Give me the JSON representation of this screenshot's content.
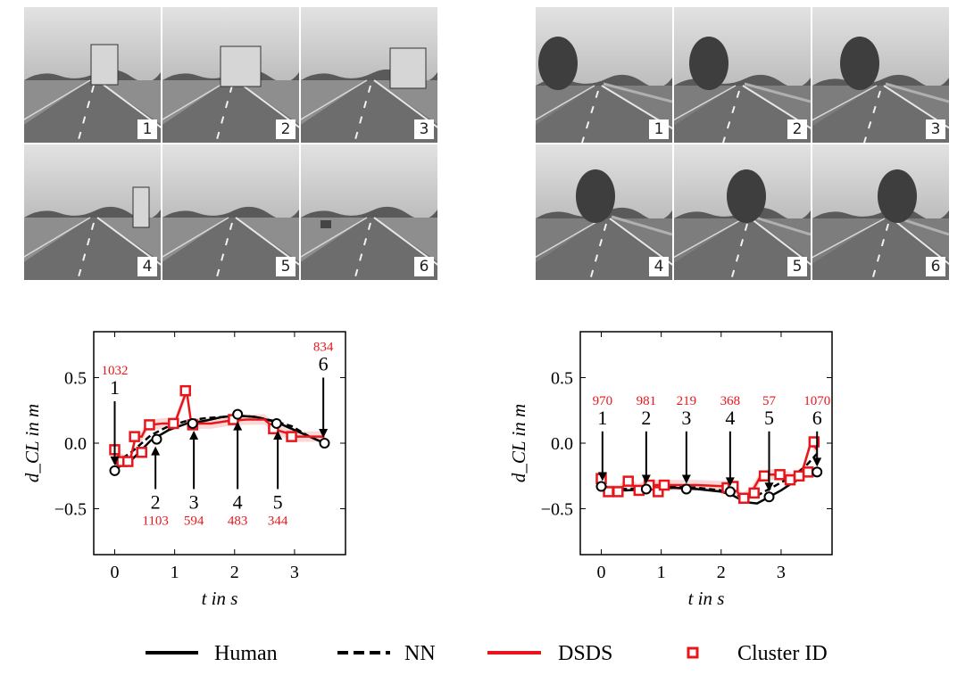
{
  "photo_panels": [
    {
      "scene": "highway-truck-overtake",
      "frame_labels": [
        "1",
        "2",
        "3",
        "4",
        "5",
        "6"
      ]
    },
    {
      "scene": "rural-curve-oncoming-car",
      "frame_labels": [
        "1",
        "2",
        "3",
        "4",
        "5",
        "6"
      ]
    }
  ],
  "legend": {
    "human": "Human",
    "nn": "NN",
    "dsds": "DSDS",
    "cluster": "Cluster ID"
  },
  "colors": {
    "human": "#000000",
    "nn": "#000000",
    "dsds": "#e8161b",
    "cluster_id": "#e8161b"
  },
  "chart_data": [
    {
      "type": "line",
      "xlabel": "t in s",
      "ylabel": "d_CL in m",
      "xlim": [
        -0.35,
        3.85
      ],
      "ylim": [
        -0.85,
        0.85
      ],
      "xticks": [
        "0",
        "1",
        "2",
        "3"
      ],
      "yticks": [
        "0.5",
        "0.0",
        "−0.5"
      ],
      "series": [
        {
          "name": "Human",
          "style": "solid-black",
          "x": [
            0,
            0.3,
            0.6,
            0.9,
            1.2,
            1.5,
            1.8,
            2.05,
            2.35,
            2.7,
            3.0,
            3.25,
            3.5
          ],
          "y": [
            -0.2,
            -0.12,
            0.02,
            0.1,
            0.15,
            0.17,
            0.2,
            0.21,
            0.2,
            0.16,
            0.1,
            0.05,
            0.0
          ]
        },
        {
          "name": "NN",
          "style": "dashed-black",
          "x": [
            0,
            0.3,
            0.6,
            0.9,
            1.2,
            1.5,
            1.8,
            2.05,
            2.35,
            2.65,
            2.95,
            3.25,
            3.5
          ],
          "y": [
            -0.16,
            -0.06,
            0.06,
            0.13,
            0.17,
            0.19,
            0.2,
            0.21,
            0.2,
            0.17,
            0.13,
            0.05,
            0.0
          ]
        },
        {
          "name": "DSDS",
          "style": "solid-red",
          "x": [
            0,
            0.1,
            0.25,
            0.35,
            0.45,
            0.55,
            0.6,
            0.8,
            1.0,
            1.2,
            1.28,
            1.35,
            1.6,
            1.9,
            2.2,
            2.5,
            2.7,
            2.85,
            3.0,
            3.5
          ],
          "y": [
            -0.05,
            -0.12,
            -0.14,
            0.05,
            0.05,
            0.14,
            0.14,
            0.15,
            0.15,
            0.4,
            0.14,
            0.15,
            0.15,
            0.17,
            0.18,
            0.18,
            0.1,
            0.08,
            0.05,
            0.05
          ]
        },
        {
          "name": "Cluster ID",
          "style": "red-square-markers",
          "x": [
            0,
            0.12,
            0.22,
            0.33,
            0.45,
            0.58,
            0.98,
            1.18,
            1.3,
            1.98,
            2.65,
            2.95
          ],
          "y": [
            -0.05,
            -0.14,
            -0.14,
            0.05,
            -0.07,
            0.14,
            0.15,
            0.4,
            0.14,
            0.18,
            0.11,
            0.05
          ]
        }
      ],
      "circles": {
        "x": [
          0,
          0.7,
          1.3,
          2.05,
          2.7,
          3.5
        ],
        "y": [
          -0.21,
          0.03,
          0.15,
          0.22,
          0.15,
          0.0
        ]
      },
      "annotations": [
        {
          "frame": "1",
          "cluster": "1032",
          "x": 0.0,
          "dir": "down"
        },
        {
          "frame": "2",
          "cluster": "1103",
          "x": 0.68,
          "dir": "up"
        },
        {
          "frame": "3",
          "cluster": "594",
          "x": 1.32,
          "dir": "up"
        },
        {
          "frame": "4",
          "cluster": "483",
          "x": 2.05,
          "dir": "up"
        },
        {
          "frame": "5",
          "cluster": "344",
          "x": 2.72,
          "dir": "up"
        },
        {
          "frame": "6",
          "cluster": "834",
          "x": 3.48,
          "dir": "down"
        }
      ]
    },
    {
      "type": "line",
      "xlabel": "t in s",
      "ylabel": "d_CL in m",
      "xlim": [
        -0.35,
        3.85
      ],
      "ylim": [
        -0.85,
        0.85
      ],
      "xticks": [
        "0",
        "1",
        "2",
        "3"
      ],
      "yticks": [
        "0.5",
        "0.0",
        "−0.5"
      ],
      "series": [
        {
          "name": "Human",
          "style": "solid-black",
          "x": [
            0,
            0.4,
            0.8,
            1.2,
            1.6,
            2.0,
            2.2,
            2.4,
            2.6,
            2.8,
            3.0,
            3.2,
            3.4,
            3.6
          ],
          "y": [
            -0.34,
            -0.36,
            -0.35,
            -0.34,
            -0.35,
            -0.37,
            -0.4,
            -0.45,
            -0.46,
            -0.41,
            -0.36,
            -0.3,
            -0.25,
            -0.22
          ]
        },
        {
          "name": "NN",
          "style": "dashed-black",
          "x": [
            0,
            0.4,
            0.8,
            1.2,
            1.6,
            2.0,
            2.2,
            2.4,
            2.6,
            2.8,
            3.0,
            3.2,
            3.4,
            3.6
          ],
          "y": [
            -0.33,
            -0.35,
            -0.34,
            -0.33,
            -0.34,
            -0.36,
            -0.38,
            -0.42,
            -0.4,
            -0.35,
            -0.3,
            -0.25,
            -0.18,
            -0.08
          ]
        },
        {
          "name": "DSDS",
          "style": "solid-red",
          "x": [
            0,
            0.1,
            0.3,
            0.45,
            0.6,
            0.8,
            0.9,
            1.0,
            1.2,
            1.6,
            2.1,
            2.2,
            2.35,
            2.5,
            2.65,
            2.8,
            3.0,
            3.2,
            3.35,
            3.5,
            3.6
          ],
          "y": [
            -0.27,
            -0.36,
            -0.36,
            -0.29,
            -0.35,
            -0.32,
            -0.32,
            -0.32,
            -0.32,
            -0.32,
            -0.33,
            -0.33,
            -0.42,
            -0.38,
            -0.26,
            -0.24,
            -0.24,
            -0.27,
            -0.22,
            0.01,
            -0.05
          ]
        },
        {
          "name": "Cluster ID",
          "style": "red-square-markers",
          "x": [
            0,
            0.12,
            0.28,
            0.45,
            0.63,
            0.8,
            0.95,
            1.05,
            2.1,
            2.2,
            2.38,
            2.55,
            2.72,
            2.98,
            3.15,
            3.3,
            3.45,
            3.55
          ],
          "y": [
            -0.27,
            -0.37,
            -0.37,
            -0.29,
            -0.36,
            -0.32,
            -0.37,
            -0.32,
            -0.34,
            -0.33,
            -0.42,
            -0.38,
            -0.25,
            -0.24,
            -0.28,
            -0.25,
            -0.22,
            0.01
          ]
        }
      ],
      "circles": {
        "x": [
          0,
          0.75,
          1.42,
          2.15,
          2.8,
          3.6
        ],
        "y": [
          -0.33,
          -0.35,
          -0.35,
          -0.37,
          -0.41,
          -0.22
        ]
      },
      "annotations": [
        {
          "frame": "1",
          "cluster": "970",
          "x": 0.02,
          "dir": "down"
        },
        {
          "frame": "2",
          "cluster": "981",
          "x": 0.75,
          "dir": "down"
        },
        {
          "frame": "3",
          "cluster": "219",
          "x": 1.42,
          "dir": "down"
        },
        {
          "frame": "4",
          "cluster": "368",
          "x": 2.15,
          "dir": "down"
        },
        {
          "frame": "5",
          "cluster": "57",
          "x": 2.8,
          "dir": "down"
        },
        {
          "frame": "6",
          "cluster": "1070",
          "x": 3.6,
          "dir": "down"
        }
      ]
    }
  ]
}
